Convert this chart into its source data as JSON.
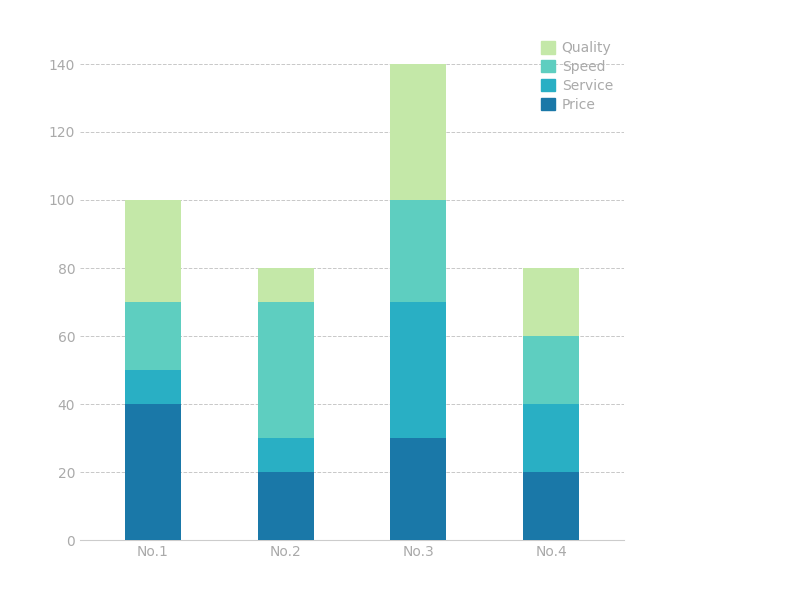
{
  "categories": [
    "No.1",
    "No.2",
    "No.3",
    "No.4"
  ],
  "series": {
    "Price": [
      40,
      20,
      30,
      20
    ],
    "Service": [
      10,
      10,
      40,
      20
    ],
    "Speed": [
      20,
      40,
      30,
      20
    ],
    "Quality": [
      30,
      10,
      40,
      20
    ]
  },
  "colors": {
    "Price": "#1a78a8",
    "Service": "#29afc4",
    "Speed": "#5ecec0",
    "Quality": "#c4e8a8"
  },
  "legend_order": [
    "Quality",
    "Speed",
    "Service",
    "Price"
  ],
  "ylim": [
    0,
    150
  ],
  "yticks": [
    0,
    20,
    40,
    60,
    80,
    100,
    120,
    140
  ],
  "bar_width": 0.42,
  "background_color": "#ffffff",
  "grid_color": "#c8c8c8",
  "tick_color": "#aaaaaa",
  "legend_fontsize": 10,
  "tick_fontsize": 10
}
